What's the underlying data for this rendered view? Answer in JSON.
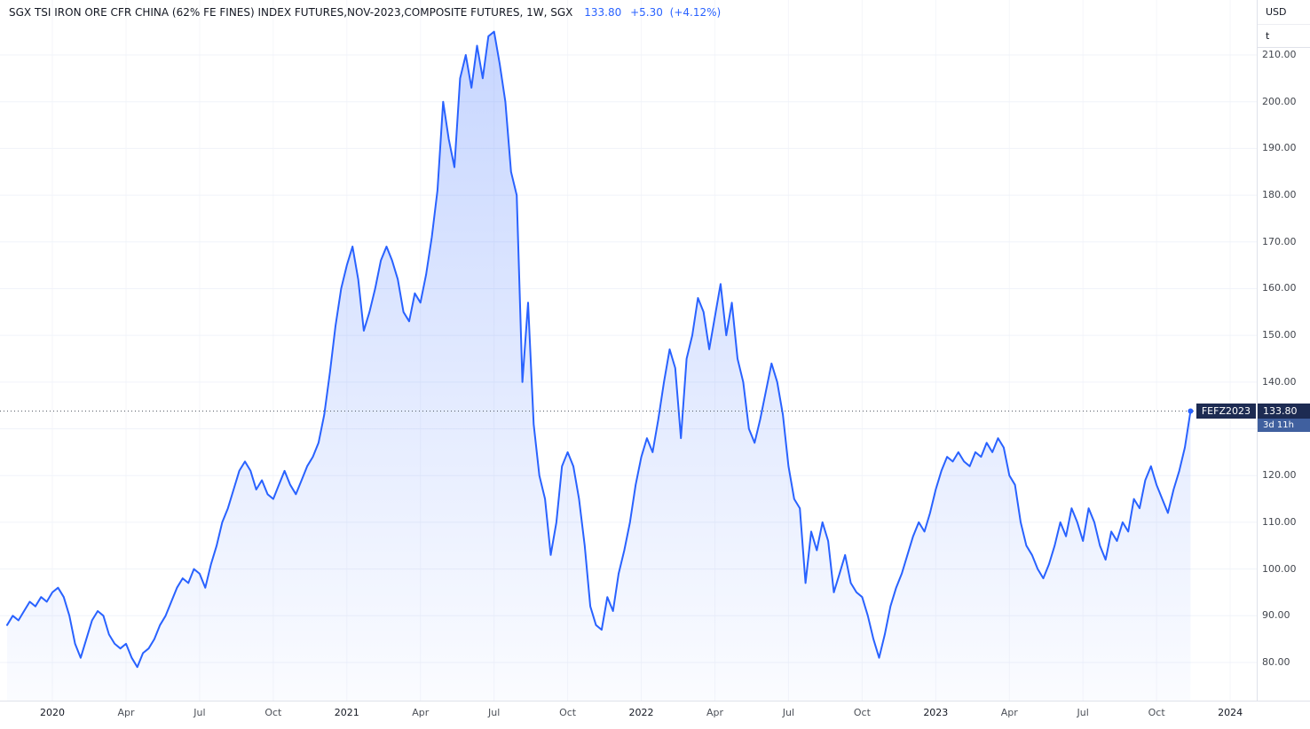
{
  "header": {
    "symbol_title": "SGX TSI IRON ORE CFR CHINA (62% FE FINES) INDEX FUTURES,NOV-2023,COMPOSITE FUTURES, 1W, SGX",
    "last_price": "133.80",
    "change": "+5.30",
    "change_pct": "(+4.12%)"
  },
  "price_scale": {
    "currency_label": "USD",
    "unit_label": "t"
  },
  "price_flag": {
    "ticker": "FEFZ2023",
    "price": "133.80",
    "countdown": "3d 11h"
  },
  "colors": {
    "series_line": "#2962ff",
    "flag_bg": "#1d2b52",
    "countdown_bg": "#40609f",
    "axis_text": "#42464e",
    "grid": "#f0f3fa",
    "price_line_dotted": "#555b66"
  },
  "chart_data": {
    "type": "area",
    "title": "SGX TSI IRON ORE CFR CHINA (62% FE FINES) INDEX FUTURES, NOV-2023, COMPOSITE FUTURES, 1W, SGX",
    "xlabel": "",
    "ylabel": "Price (USD per tonne)",
    "frequency": "weekly",
    "ylim": [
      76,
      219
    ],
    "grid": true,
    "legend_position": "none",
    "y_ticks": [
      80,
      90,
      100,
      110,
      120,
      130,
      140,
      150,
      160,
      170,
      180,
      190,
      200,
      210
    ],
    "x_ticks": [
      {
        "label": "2020",
        "week": 8,
        "major": true
      },
      {
        "label": "Apr",
        "week": 21,
        "major": false
      },
      {
        "label": "Jul",
        "week": 34,
        "major": false
      },
      {
        "label": "Oct",
        "week": 47,
        "major": false
      },
      {
        "label": "2021",
        "week": 60,
        "major": true
      },
      {
        "label": "Apr",
        "week": 73,
        "major": false
      },
      {
        "label": "Jul",
        "week": 86,
        "major": false
      },
      {
        "label": "Oct",
        "week": 99,
        "major": false
      },
      {
        "label": "2022",
        "week": 112,
        "major": true
      },
      {
        "label": "Apr",
        "week": 125,
        "major": false
      },
      {
        "label": "Jul",
        "week": 138,
        "major": false
      },
      {
        "label": "Oct",
        "week": 151,
        "major": false
      },
      {
        "label": "2023",
        "week": 164,
        "major": true
      },
      {
        "label": "Apr",
        "week": 177,
        "major": false
      },
      {
        "label": "Jul",
        "week": 190,
        "major": false
      },
      {
        "label": "Oct",
        "week": 203,
        "major": false
      },
      {
        "label": "2024",
        "week": 216,
        "major": true
      }
    ],
    "series": [
      {
        "name": "FEFZ2023",
        "values": [
          88,
          90,
          89,
          91,
          93,
          92,
          94,
          93,
          95,
          96,
          94,
          90,
          84,
          81,
          85,
          89,
          91,
          90,
          86,
          84,
          83,
          84,
          81,
          79,
          82,
          83,
          85,
          88,
          90,
          93,
          96,
          98,
          97,
          100,
          99,
          96,
          101,
          105,
          110,
          113,
          117,
          121,
          123,
          121,
          117,
          119,
          116,
          115,
          118,
          121,
          118,
          116,
          119,
          122,
          124,
          127,
          133,
          142,
          152,
          160,
          165,
          169,
          162,
          151,
          155,
          160,
          166,
          169,
          166,
          162,
          155,
          153,
          159,
          157,
          163,
          171,
          181,
          200,
          192,
          186,
          205,
          210,
          203,
          212,
          205,
          214,
          215,
          208,
          200,
          185,
          180,
          140,
          157,
          131,
          120,
          115,
          103,
          110,
          122,
          125,
          122,
          115,
          105,
          92,
          88,
          87,
          94,
          91,
          99,
          104,
          110,
          118,
          124,
          128,
          125,
          132,
          140,
          147,
          143,
          128,
          145,
          150,
          158,
          155,
          147,
          154,
          161,
          150,
          157,
          145,
          140,
          130,
          127,
          132,
          138,
          144,
          140,
          133,
          122,
          115,
          113,
          97,
          108,
          104,
          110,
          106,
          95,
          99,
          103,
          97,
          95,
          94,
          90,
          85,
          81,
          86,
          92,
          96,
          99,
          103,
          107,
          110,
          108,
          112,
          117,
          121,
          124,
          123,
          125,
          123,
          122,
          125,
          124,
          127,
          125,
          128,
          126,
          120,
          118,
          110,
          105,
          103,
          100,
          98,
          101,
          105,
          110,
          107,
          113,
          110,
          106,
          113,
          110,
          105,
          102,
          108,
          106,
          110,
          108,
          115,
          113,
          119,
          122,
          118,
          115,
          112,
          117,
          121,
          126,
          133.8
        ]
      }
    ],
    "last_value": 133.8,
    "current_price_line": 133.8
  }
}
